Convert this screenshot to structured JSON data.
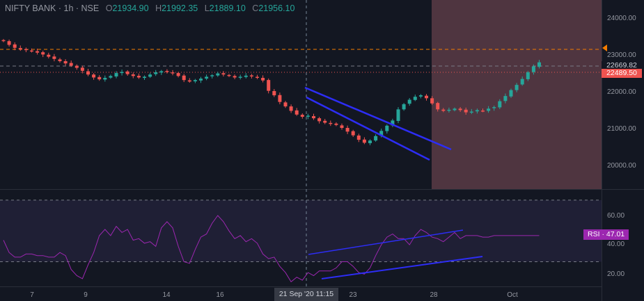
{
  "symbol": {
    "label": "NIFTY BANK · 1h · NSE",
    "open_key": "O",
    "open": "21934.90",
    "high_key": "H",
    "high": "21992.35",
    "low_key": "L",
    "low": "21889.10",
    "close_key": "C",
    "close": "21956.10"
  },
  "price_axis": {
    "ticks": [
      "24000.00",
      "23000.00",
      "22000.00",
      "21000.00",
      "20000.00"
    ],
    "current_price": "22669.82",
    "line_price": "22489.50"
  },
  "rsi": {
    "label": "RSI",
    "separator": "·",
    "value": "47.01",
    "ticks": [
      "60.00",
      "40.00",
      "20.00"
    ]
  },
  "time_axis": {
    "ticks": [
      "7",
      "9",
      "14",
      "16",
      "23",
      "28",
      "Oct"
    ],
    "cursor_label": "21 Sep '20   11:15"
  },
  "colors": {
    "background": "#131722",
    "up": "#26a69a",
    "down": "#ef5350",
    "rsi_line": "#9c27b0",
    "trendline": "#2d2df5",
    "highlight": "#5b3b45"
  },
  "chart_data": {
    "type": "candlestick",
    "ylim": [
      19400,
      24500
    ],
    "closes": [
      23240,
      23140,
      23060,
      23020,
      23000,
      22970,
      22930,
      22880,
      22820,
      22760,
      22700,
      22640,
      22580,
      22520,
      22440,
      22340,
      22260,
      22210,
      22250,
      22300,
      22380,
      22410,
      22350,
      22300,
      22260,
      22280,
      22340,
      22400,
      22430,
      22410,
      22380,
      22300,
      22190,
      22150,
      22190,
      22230,
      22280,
      22320,
      22370,
      22340,
      22300,
      22260,
      22280,
      22310,
      22290,
      22250,
      22180,
      21900,
      21780,
      21600,
      21480,
      21360,
      21260,
      21200,
      21230,
      21160,
      21080,
      21040,
      21010,
      20980,
      20900,
      20800,
      20700,
      20580,
      20500,
      20560,
      20680,
      20820,
      20960,
      21100,
      21400,
      21540,
      21660,
      21740,
      21780,
      21700,
      21560,
      21400,
      21360,
      21390,
      21420,
      21380,
      21320,
      21340,
      21380,
      21360,
      21420,
      21460,
      21620,
      21760,
      21920,
      22060,
      22220,
      22400,
      22560,
      22669
    ],
    "rsi_values": [
      44,
      36,
      33,
      33,
      35,
      35,
      34,
      34,
      33,
      33,
      36,
      34,
      25,
      21,
      19,
      28,
      36,
      47,
      51,
      47,
      53,
      49,
      51,
      44,
      45,
      42,
      43,
      40,
      52,
      56,
      52,
      40,
      30,
      29,
      38,
      46,
      48,
      55,
      60,
      56,
      50,
      45,
      47,
      43,
      45,
      42,
      35,
      32,
      33,
      27,
      23,
      17,
      20,
      18,
      23,
      21,
      24,
      24,
      24,
      26,
      30,
      30,
      27,
      23,
      22,
      26,
      34,
      41,
      46,
      48,
      45,
      45,
      41,
      47,
      51,
      49,
      46,
      45,
      43,
      46,
      49,
      45,
      47,
      47,
      47,
      46,
      46,
      47,
      47,
      47,
      47,
      47,
      47,
      47,
      47,
      47
    ],
    "rsi_levels": [
      70,
      30
    ],
    "rsi_ylim": [
      14,
      74
    ]
  }
}
